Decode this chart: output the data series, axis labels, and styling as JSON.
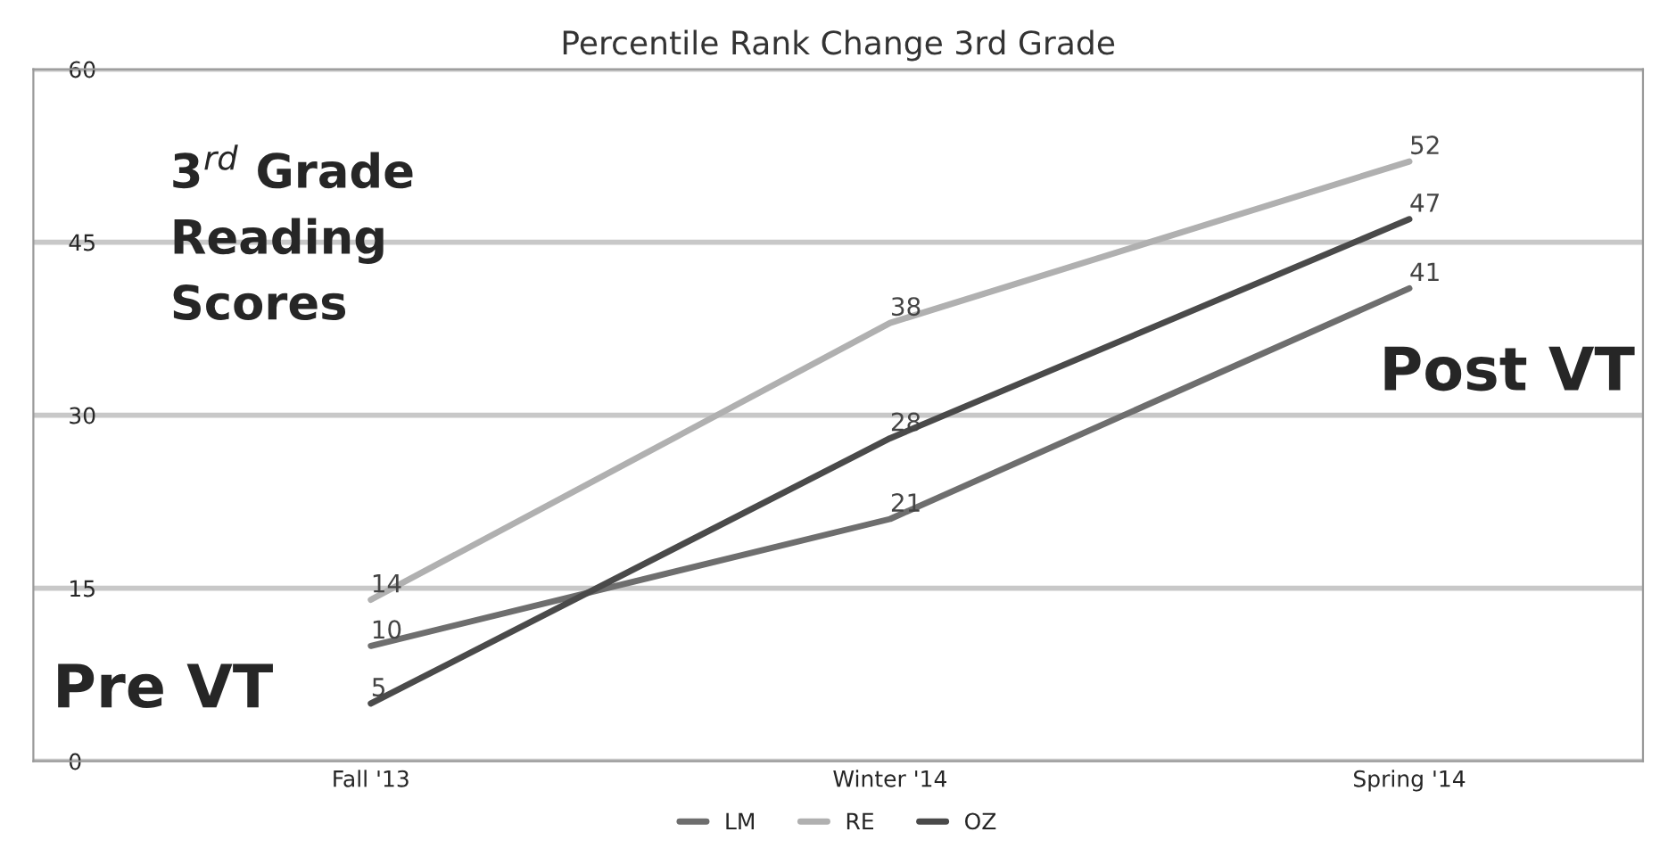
{
  "chart_data": {
    "type": "line",
    "title": "Percentile Rank Change 3rd Grade",
    "categories": [
      "Fall '13",
      "Winter '14",
      "Spring '14"
    ],
    "series": [
      {
        "name": "LM",
        "color": "#6e6e6e",
        "values": [
          10,
          21,
          41
        ]
      },
      {
        "name": "RE",
        "color": "#b0b0b0",
        "values": [
          14,
          38,
          52
        ]
      },
      {
        "name": "OZ",
        "color": "#4a4a4a",
        "values": [
          5,
          28,
          47
        ]
      }
    ],
    "ylim": [
      0,
      60
    ],
    "yticks": [
      0,
      15,
      30,
      45,
      60
    ],
    "grid": "y",
    "legend": "bottom",
    "data_labels": true,
    "marker": "none",
    "line_style": "solid",
    "annotations": [
      "3$^{rd}$ Grade",
      "Reading",
      "Scores",
      "Post VT",
      "Pre VT"
    ]
  }
}
